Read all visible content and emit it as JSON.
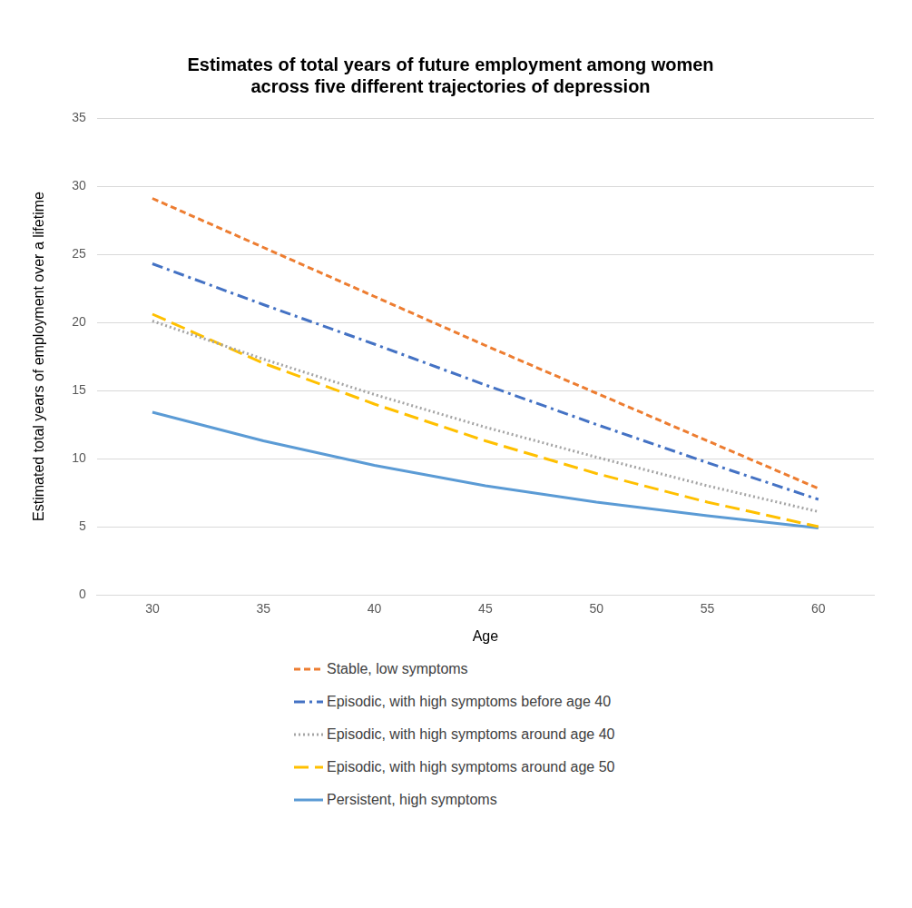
{
  "chart_data": {
    "type": "line",
    "title": [
      "Estimates of total years of future employment among women",
      "across five different trajectories of depression"
    ],
    "x_label": "Age",
    "y_label": "Estimated total years of employment over a lifetime",
    "x": [
      30,
      35,
      40,
      45,
      50,
      55,
      60
    ],
    "xlim": [
      27.5,
      62.5
    ],
    "xticks": [
      30,
      35,
      40,
      45,
      50,
      55,
      60
    ],
    "ylim": [
      0,
      35
    ],
    "yticks": [
      0,
      5,
      10,
      15,
      20,
      25,
      30,
      35
    ],
    "grid": "y",
    "legend": "bottom",
    "marker": "none",
    "series": [
      {
        "name": "Stable, low symptoms",
        "color": "#ed7d31",
        "line_style": "dashed",
        "values": [
          29.1,
          25.5,
          21.9,
          18.3,
          14.8,
          11.3,
          7.8
        ]
      },
      {
        "name": "Episodic, with high symptoms before age 40",
        "color": "#4472c4",
        "line_style": "dashdot",
        "values": [
          24.3,
          21.3,
          18.4,
          15.4,
          12.5,
          9.7,
          7.0
        ]
      },
      {
        "name": "Episodic, with high symptoms around age 40",
        "color": "#a5a5a5",
        "line_style": "dotted",
        "values": [
          20.1,
          17.3,
          14.7,
          12.3,
          10.1,
          8.0,
          6.1
        ]
      },
      {
        "name": "Episodic, with high symptoms around age 50",
        "color": "#ffc000",
        "line_style": "longdash",
        "values": [
          20.6,
          17.0,
          14.0,
          11.3,
          8.9,
          6.8,
          5.0
        ]
      },
      {
        "name": "Persistent, high symptoms",
        "color": "#5b9bd5",
        "line_style": "solid",
        "values": [
          13.4,
          11.3,
          9.5,
          8.0,
          6.8,
          5.8,
          4.9
        ]
      }
    ]
  }
}
